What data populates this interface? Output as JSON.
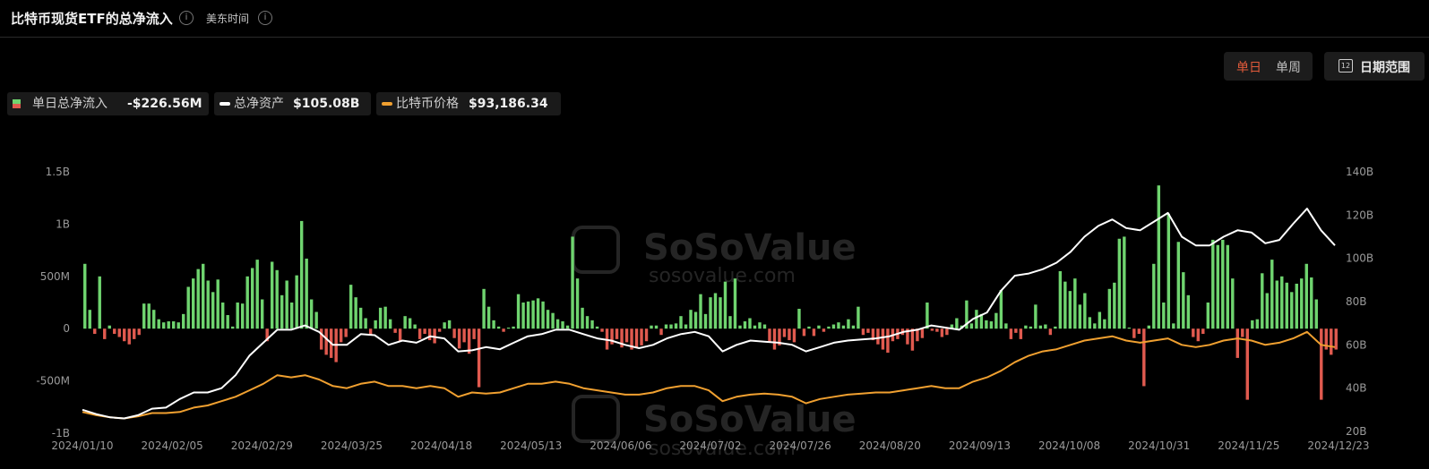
{
  "header": {
    "title": "比特币现货ETF的总净流入",
    "timezone_label": "美东时间",
    "info_icon": "info-icon"
  },
  "controls": {
    "daily_label": "单日",
    "weekly_label": "单周",
    "date_range_label": "日期范围",
    "calendar_icon_text": "12",
    "active_toggle": "单日"
  },
  "legend": {
    "netflow_label": "单日总净流入",
    "netflow_value": "-$226.56M",
    "assets_label": "总净资产",
    "assets_value": "$105.08B",
    "price_label": "比特币价格",
    "price_value": "$93,186.34"
  },
  "watermark": {
    "brand": "SoSoValue",
    "url": "sosovalue.com"
  },
  "colors": {
    "positive_bar": "#6fd46f",
    "negative_bar": "#e05a4f",
    "assets_line": "#ffffff",
    "price_line": "#f0a030",
    "active_toggle": "#e05a3a"
  },
  "chart_data": {
    "type": "bar",
    "left_axis": {
      "ticks": [
        "1.5B",
        "1B",
        "500M",
        "0",
        "-500M",
        "-1B"
      ],
      "tick_values": [
        1500,
        1000,
        500,
        0,
        -500,
        -1000
      ],
      "ylim": [
        -1000,
        1500
      ],
      "unit": "M USD"
    },
    "right_axis": {
      "ticks": [
        "140B",
        "120B",
        "100B",
        "80B",
        "60B",
        "40B",
        "20B"
      ],
      "tick_values": [
        140,
        120,
        100,
        80,
        60,
        40,
        20
      ],
      "ylim": [
        20,
        140
      ],
      "unit": "B USD"
    },
    "x_tick_labels": [
      "2024/01/10",
      "2024/02/05",
      "2024/02/29",
      "2024/03/25",
      "2024/04/18",
      "2024/05/13",
      "2024/06/06",
      "2024/07/02",
      "2024/07/26",
      "2024/08/20",
      "2024/09/13",
      "2024/10/08",
      "2024/10/31",
      "2024/11/25",
      "2024/12/23"
    ],
    "grid": false,
    "series": [
      {
        "name": "单日总净流入",
        "kind": "bar",
        "axis": "left",
        "values": [
          620,
          180,
          -50,
          500,
          -100,
          30,
          -50,
          -80,
          -120,
          -150,
          -100,
          -60,
          240,
          240,
          180,
          90,
          60,
          70,
          70,
          60,
          140,
          400,
          480,
          570,
          620,
          460,
          350,
          470,
          250,
          130,
          20,
          250,
          240,
          500,
          580,
          660,
          280,
          -120,
          640,
          560,
          320,
          460,
          250,
          510,
          1030,
          670,
          280,
          160,
          -200,
          -250,
          -280,
          -320,
          -130,
          -80,
          420,
          300,
          200,
          100,
          -60,
          80,
          200,
          210,
          90,
          -40,
          -120,
          120,
          100,
          40,
          -100,
          -50,
          -110,
          -140,
          -30,
          60,
          80,
          -90,
          -190,
          -130,
          -240,
          -100,
          -560,
          380,
          210,
          80,
          20,
          -30,
          10,
          20,
          330,
          250,
          260,
          270,
          290,
          260,
          180,
          150,
          90,
          70,
          30,
          880,
          480,
          200,
          120,
          80,
          20,
          -30,
          -200,
          -150,
          -100,
          -180,
          -130,
          -200,
          -180,
          -160,
          -120,
          30,
          30,
          -60,
          40,
          40,
          50,
          120,
          40,
          180,
          160,
          330,
          140,
          300,
          340,
          300,
          450,
          120,
          480,
          30,
          70,
          100,
          30,
          60,
          40,
          -130,
          -200,
          -160,
          -80,
          -110,
          -130,
          190,
          -70,
          20,
          -70,
          30,
          -30,
          20,
          40,
          60,
          30,
          90,
          30,
          210,
          -60,
          -40,
          -110,
          -150,
          -200,
          -230,
          -120,
          -100,
          -60,
          -150,
          -210,
          -120,
          -90,
          250,
          -20,
          -30,
          -80,
          -60,
          40,
          100,
          30,
          270,
          50,
          180,
          140,
          80,
          70,
          150,
          370,
          50,
          -100,
          -40,
          -100,
          30,
          20,
          230,
          30,
          40,
          -60,
          20,
          550,
          450,
          360,
          480,
          230,
          340,
          110,
          50,
          160,
          90,
          380,
          440,
          860,
          880,
          10,
          -90,
          -50,
          -550,
          30,
          620,
          1370,
          250,
          1100,
          50,
          830,
          540,
          320,
          -80,
          -120,
          -50,
          250,
          850,
          800,
          850,
          800,
          480,
          -280,
          -80,
          -680,
          80,
          90,
          530,
          340,
          660,
          460,
          500,
          440,
          350,
          430,
          480,
          620,
          490,
          280,
          -680,
          -200,
          -250,
          -200
        ]
      },
      {
        "name": "总净资产",
        "kind": "line",
        "axis": "right",
        "points": [
          [
            0,
            30
          ],
          [
            20,
            28
          ],
          [
            40,
            26.5
          ],
          [
            60,
            26
          ],
          [
            80,
            27.5
          ],
          [
            100,
            30.5
          ],
          [
            120,
            31
          ],
          [
            140,
            35
          ],
          [
            160,
            38
          ],
          [
            180,
            38
          ],
          [
            200,
            40
          ],
          [
            220,
            46
          ],
          [
            240,
            55
          ],
          [
            260,
            61
          ],
          [
            280,
            67
          ],
          [
            300,
            67
          ],
          [
            320,
            69
          ],
          [
            340,
            66
          ],
          [
            360,
            60
          ],
          [
            380,
            60
          ],
          [
            400,
            65
          ],
          [
            420,
            64.5
          ],
          [
            440,
            60
          ],
          [
            460,
            62
          ],
          [
            480,
            61
          ],
          [
            500,
            64
          ],
          [
            520,
            63
          ],
          [
            540,
            57
          ],
          [
            560,
            57.5
          ],
          [
            580,
            59
          ],
          [
            600,
            58
          ],
          [
            620,
            61
          ],
          [
            640,
            64
          ],
          [
            660,
            65
          ],
          [
            680,
            67
          ],
          [
            700,
            67
          ],
          [
            720,
            65
          ],
          [
            740,
            63
          ],
          [
            760,
            62
          ],
          [
            780,
            60
          ],
          [
            800,
            58.5
          ],
          [
            820,
            60
          ],
          [
            840,
            63
          ],
          [
            860,
            65
          ],
          [
            880,
            66
          ],
          [
            900,
            64
          ],
          [
            920,
            57
          ],
          [
            940,
            60
          ],
          [
            960,
            62
          ],
          [
            980,
            61.5
          ],
          [
            1000,
            61
          ],
          [
            1020,
            60
          ],
          [
            1040,
            57
          ],
          [
            1060,
            59
          ],
          [
            1080,
            61
          ],
          [
            1100,
            62
          ],
          [
            1120,
            62.5
          ],
          [
            1140,
            63
          ],
          [
            1160,
            64
          ],
          [
            1180,
            66
          ],
          [
            1200,
            67
          ],
          [
            1220,
            69
          ],
          [
            1240,
            68
          ],
          [
            1260,
            67
          ],
          [
            1280,
            72
          ],
          [
            1300,
            75
          ],
          [
            1320,
            85
          ],
          [
            1340,
            92
          ],
          [
            1360,
            93
          ],
          [
            1380,
            95
          ],
          [
            1400,
            98
          ],
          [
            1420,
            103
          ],
          [
            1440,
            110
          ],
          [
            1460,
            115
          ],
          [
            1480,
            118
          ],
          [
            1500,
            114
          ],
          [
            1520,
            113
          ],
          [
            1540,
            117
          ],
          [
            1560,
            121
          ],
          [
            1580,
            110
          ],
          [
            1600,
            106
          ],
          [
            1620,
            106
          ],
          [
            1640,
            110
          ],
          [
            1660,
            113
          ],
          [
            1680,
            112
          ],
          [
            1700,
            107
          ],
          [
            1720,
            108.5
          ],
          [
            1740,
            116
          ],
          [
            1760,
            123
          ],
          [
            1780,
            113
          ],
          [
            1800,
            106
          ]
        ]
      },
      {
        "name": "比特币价格",
        "kind": "line",
        "axis": "right",
        "points": [
          [
            0,
            29
          ],
          [
            20,
            27.5
          ],
          [
            40,
            26.5
          ],
          [
            60,
            26
          ],
          [
            80,
            27
          ],
          [
            100,
            28.5
          ],
          [
            120,
            28.5
          ],
          [
            140,
            29
          ],
          [
            160,
            31
          ],
          [
            180,
            32
          ],
          [
            200,
            34
          ],
          [
            220,
            36
          ],
          [
            240,
            39
          ],
          [
            260,
            42
          ],
          [
            280,
            46
          ],
          [
            300,
            45
          ],
          [
            320,
            46
          ],
          [
            340,
            44
          ],
          [
            360,
            41
          ],
          [
            380,
            40
          ],
          [
            400,
            42
          ],
          [
            420,
            43
          ],
          [
            440,
            41
          ],
          [
            460,
            41
          ],
          [
            480,
            40
          ],
          [
            500,
            41
          ],
          [
            520,
            40
          ],
          [
            540,
            36
          ],
          [
            560,
            38
          ],
          [
            580,
            37.5
          ],
          [
            600,
            38
          ],
          [
            620,
            40
          ],
          [
            640,
            42
          ],
          [
            660,
            42
          ],
          [
            680,
            43
          ],
          [
            700,
            42
          ],
          [
            720,
            40
          ],
          [
            740,
            39
          ],
          [
            760,
            38
          ],
          [
            780,
            37
          ],
          [
            800,
            37
          ],
          [
            820,
            38
          ],
          [
            840,
            40
          ],
          [
            860,
            41
          ],
          [
            880,
            41
          ],
          [
            900,
            39
          ],
          [
            920,
            34
          ],
          [
            940,
            36
          ],
          [
            960,
            37
          ],
          [
            980,
            37.5
          ],
          [
            1000,
            37
          ],
          [
            1020,
            36
          ],
          [
            1040,
            33
          ],
          [
            1060,
            35
          ],
          [
            1080,
            36
          ],
          [
            1100,
            37
          ],
          [
            1120,
            37.5
          ],
          [
            1140,
            38
          ],
          [
            1160,
            38
          ],
          [
            1180,
            39
          ],
          [
            1200,
            40
          ],
          [
            1220,
            41
          ],
          [
            1240,
            40
          ],
          [
            1260,
            40
          ],
          [
            1280,
            43
          ],
          [
            1300,
            45
          ],
          [
            1320,
            48
          ],
          [
            1340,
            52
          ],
          [
            1360,
            55
          ],
          [
            1380,
            57
          ],
          [
            1400,
            58
          ],
          [
            1420,
            60
          ],
          [
            1440,
            62
          ],
          [
            1460,
            63
          ],
          [
            1480,
            64
          ],
          [
            1500,
            62
          ],
          [
            1520,
            61
          ],
          [
            1540,
            62
          ],
          [
            1560,
            63
          ],
          [
            1580,
            60
          ],
          [
            1600,
            59
          ],
          [
            1620,
            60
          ],
          [
            1640,
            62
          ],
          [
            1660,
            63
          ],
          [
            1680,
            62
          ],
          [
            1700,
            60
          ],
          [
            1720,
            61
          ],
          [
            1740,
            63
          ],
          [
            1760,
            66
          ],
          [
            1780,
            60
          ],
          [
            1800,
            59
          ]
        ]
      }
    ]
  }
}
